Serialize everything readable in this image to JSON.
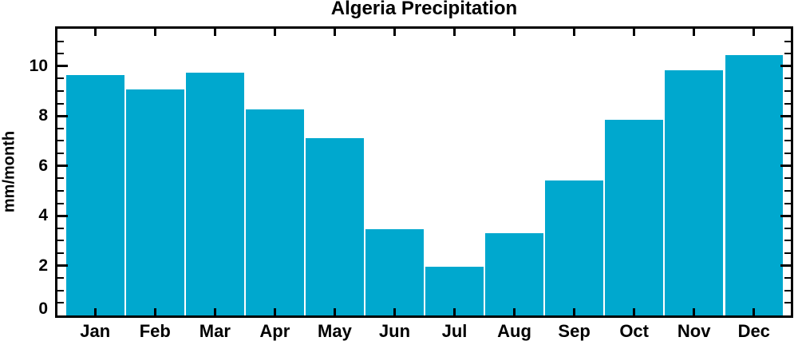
{
  "chart_data": {
    "type": "bar",
    "title": "Algeria Precipitation",
    "ylabel": "mm/month",
    "xlabel": "",
    "categories": [
      "Jan",
      "Feb",
      "Mar",
      "Apr",
      "May",
      "Jun",
      "Jul",
      "Aug",
      "Sep",
      "Oct",
      "Nov",
      "Dec"
    ],
    "values": [
      9.65,
      9.05,
      9.75,
      8.25,
      7.1,
      3.45,
      1.95,
      3.3,
      5.4,
      7.85,
      9.85,
      10.45
    ],
    "ylim": [
      0,
      11.5
    ],
    "yticks_major": [
      0,
      2,
      4,
      6,
      8,
      10
    ],
    "ytick_minor_step": 0.5,
    "grid": false,
    "legend": null,
    "colors": {
      "bar": "#00A8CE",
      "axis": "#000000",
      "text": "#000000",
      "background": "#FFFFFF"
    }
  }
}
